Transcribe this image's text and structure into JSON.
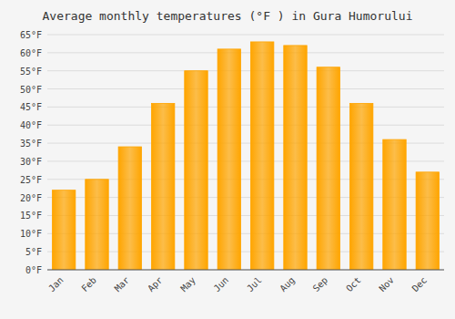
{
  "chart_data": {
    "type": "bar",
    "title": "Average monthly temperatures (°F ) in Gura Humorului",
    "categories": [
      "Jan",
      "Feb",
      "Mar",
      "Apr",
      "May",
      "Jun",
      "Jul",
      "Aug",
      "Sep",
      "Oct",
      "Nov",
      "Dec"
    ],
    "values": [
      22,
      25,
      34,
      46,
      55,
      61,
      63,
      62,
      56,
      46,
      36,
      27
    ],
    "color": "#FFA500",
    "ylim": [
      0,
      65
    ],
    "yticks": [
      {
        "value": 0,
        "label": "0°F"
      },
      {
        "value": 5,
        "label": "5°F"
      },
      {
        "value": 10,
        "label": "10°F"
      },
      {
        "value": 15,
        "label": "15°F"
      },
      {
        "value": 20,
        "label": "20°F"
      },
      {
        "value": 25,
        "label": "25°F"
      },
      {
        "value": 30,
        "label": "30°F"
      },
      {
        "value": 35,
        "label": "35°F"
      },
      {
        "value": 40,
        "label": "40°F"
      },
      {
        "value": 45,
        "label": "45°F"
      },
      {
        "value": 50,
        "label": "50°F"
      },
      {
        "value": 55,
        "label": "55°F"
      },
      {
        "value": 60,
        "label": "60°F"
      },
      {
        "value": 65,
        "label": "65°F"
      }
    ],
    "grid": true
  }
}
